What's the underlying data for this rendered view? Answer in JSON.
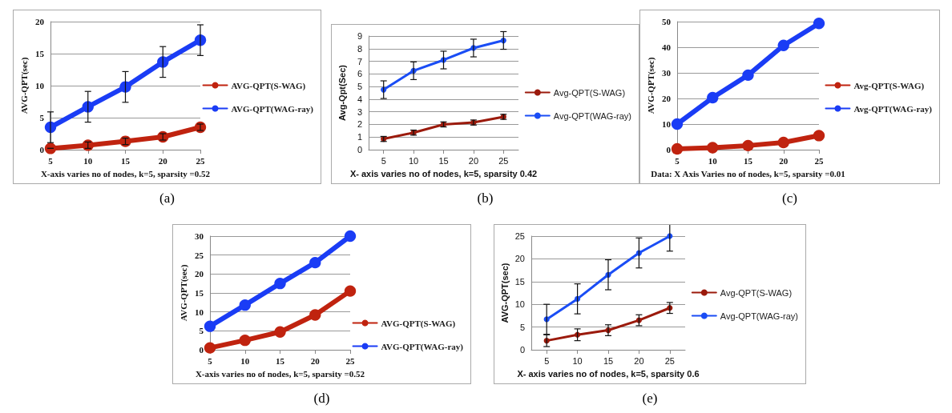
{
  "chart_data": [
    {
      "type": "line",
      "xlabel": "X-axis varies no of nodes, k=5, sparsity =0.52",
      "ylabel": "AVG-QPT(sec)",
      "annotations": [
        "(a)"
      ],
      "categories": [
        "5",
        "10",
        "15",
        "20",
        "25"
      ],
      "ylim": [
        0,
        20
      ],
      "yticks": [
        0,
        5,
        10,
        15,
        20
      ],
      "grid": "y",
      "legend": "right",
      "marker": "circle",
      "line_style": "solid",
      "series": [
        {
          "name": "AVG-QPT(S-WAG)",
          "color": "#c0230f",
          "values": [
            0.2,
            0.7,
            1.3,
            2.0,
            3.5
          ],
          "errors": [
            null,
            0.5,
            0.5,
            0.5,
            0.5
          ]
        },
        {
          "name": "AVG-QPT(WAG-ray)",
          "color": "#1a3cf5",
          "values": [
            3.5,
            6.7,
            9.8,
            13.7,
            17.1
          ],
          "errors": [
            2.4,
            2.4,
            2.4,
            2.4,
            2.4
          ]
        }
      ]
    },
    {
      "type": "line",
      "xlabel": "X- axis varies no of nodes, k=5, sparsity 0.42",
      "ylabel": "Avg-Qpt(Sec)",
      "annotations": [
        "(b)"
      ],
      "categories": [
        "5",
        "10",
        "15",
        "20",
        "25"
      ],
      "ylim": [
        0,
        9
      ],
      "yticks": [
        0,
        1,
        2,
        3,
        4,
        5,
        6,
        7,
        8,
        9
      ],
      "grid": "y",
      "legend": "right",
      "marker": "circle",
      "line_style": "solid",
      "series": [
        {
          "name": "Avg-QPT(S-WAG)",
          "color": "#9b1a0c",
          "values": [
            0.85,
            1.35,
            2.0,
            2.15,
            2.6
          ],
          "errors": [
            0.2,
            0.2,
            0.2,
            0.2,
            0.2
          ]
        },
        {
          "name": "Avg-QPT(WAG-ray)",
          "color": "#1a4df5",
          "values": [
            4.75,
            6.25,
            7.1,
            8.05,
            8.65
          ],
          "errors": [
            0.7,
            0.7,
            0.7,
            0.7,
            0.7
          ]
        }
      ]
    },
    {
      "type": "line",
      "xlabel": "Data: X Axis Varies no of nodes, k=5, sparsity =0.01",
      "ylabel": "AVG-QPT(sec)",
      "annotations": [
        "(c)"
      ],
      "categories": [
        "5",
        "10",
        "15",
        "20",
        "25"
      ],
      "ylim": [
        0,
        50
      ],
      "yticks": [
        0,
        10,
        20,
        30,
        40,
        50
      ],
      "grid": "y",
      "legend": "right",
      "marker": "circle",
      "line_style": "solid",
      "series": [
        {
          "name": "Avg-QPT(S-WAG)",
          "color": "#c0230f",
          "values": [
            0.3,
            0.8,
            1.6,
            2.8,
            5.5
          ]
        },
        {
          "name": "Avg-QPT(WAG-ray)",
          "color": "#1a3cf5",
          "values": [
            10,
            20.3,
            29.1,
            40.7,
            49.3
          ]
        }
      ]
    },
    {
      "type": "line",
      "xlabel": "X-axis varies no of nodes, k=5, sparsity =0.52",
      "ylabel": "AVG-QPT(sec)",
      "annotations": [
        "(d)"
      ],
      "categories": [
        "5",
        "10",
        "15",
        "20",
        "25"
      ],
      "ylim": [
        0,
        30
      ],
      "yticks": [
        0,
        5,
        10,
        15,
        20,
        25,
        30
      ],
      "grid": "y",
      "legend": "bottom right",
      "marker": "circle",
      "line_style": "solid",
      "series": [
        {
          "name": "AVG-QPT(S-WAG)",
          "color": "#c0230f",
          "values": [
            0.5,
            2.5,
            4.7,
            9.2,
            15.5
          ]
        },
        {
          "name": "AVG-QPT(WAG-ray)",
          "color": "#1a3cf5",
          "values": [
            6.2,
            11.8,
            17.5,
            23,
            30
          ]
        }
      ]
    },
    {
      "type": "line",
      "xlabel": "X- axis varies no of nodes, k=5, sparsity 0.6",
      "ylabel": "AVG-QPT(sec)",
      "annotations": [
        "(e)"
      ],
      "categories": [
        "5",
        "10",
        "15",
        "20",
        "25"
      ],
      "ylim": [
        0,
        25
      ],
      "yticks": [
        0,
        5,
        10,
        15,
        20,
        25
      ],
      "grid": "y",
      "legend": "right",
      "marker": "circle",
      "line_style": "solid",
      "series": [
        {
          "name": "Avg-QPT(S-WAG)",
          "color": "#9b1a0c",
          "values": [
            2,
            3.3,
            4.3,
            6.5,
            9.2
          ],
          "errors": [
            1.3,
            1.3,
            1.2,
            1.2,
            1.2
          ]
        },
        {
          "name": "Avg-QPT(WAG-ray)",
          "color": "#1a4df5",
          "values": [
            6.7,
            11.2,
            16.5,
            21.3,
            25
          ],
          "errors": [
            3.3,
            3.3,
            3.3,
            3.3,
            3.3
          ]
        }
      ]
    }
  ]
}
